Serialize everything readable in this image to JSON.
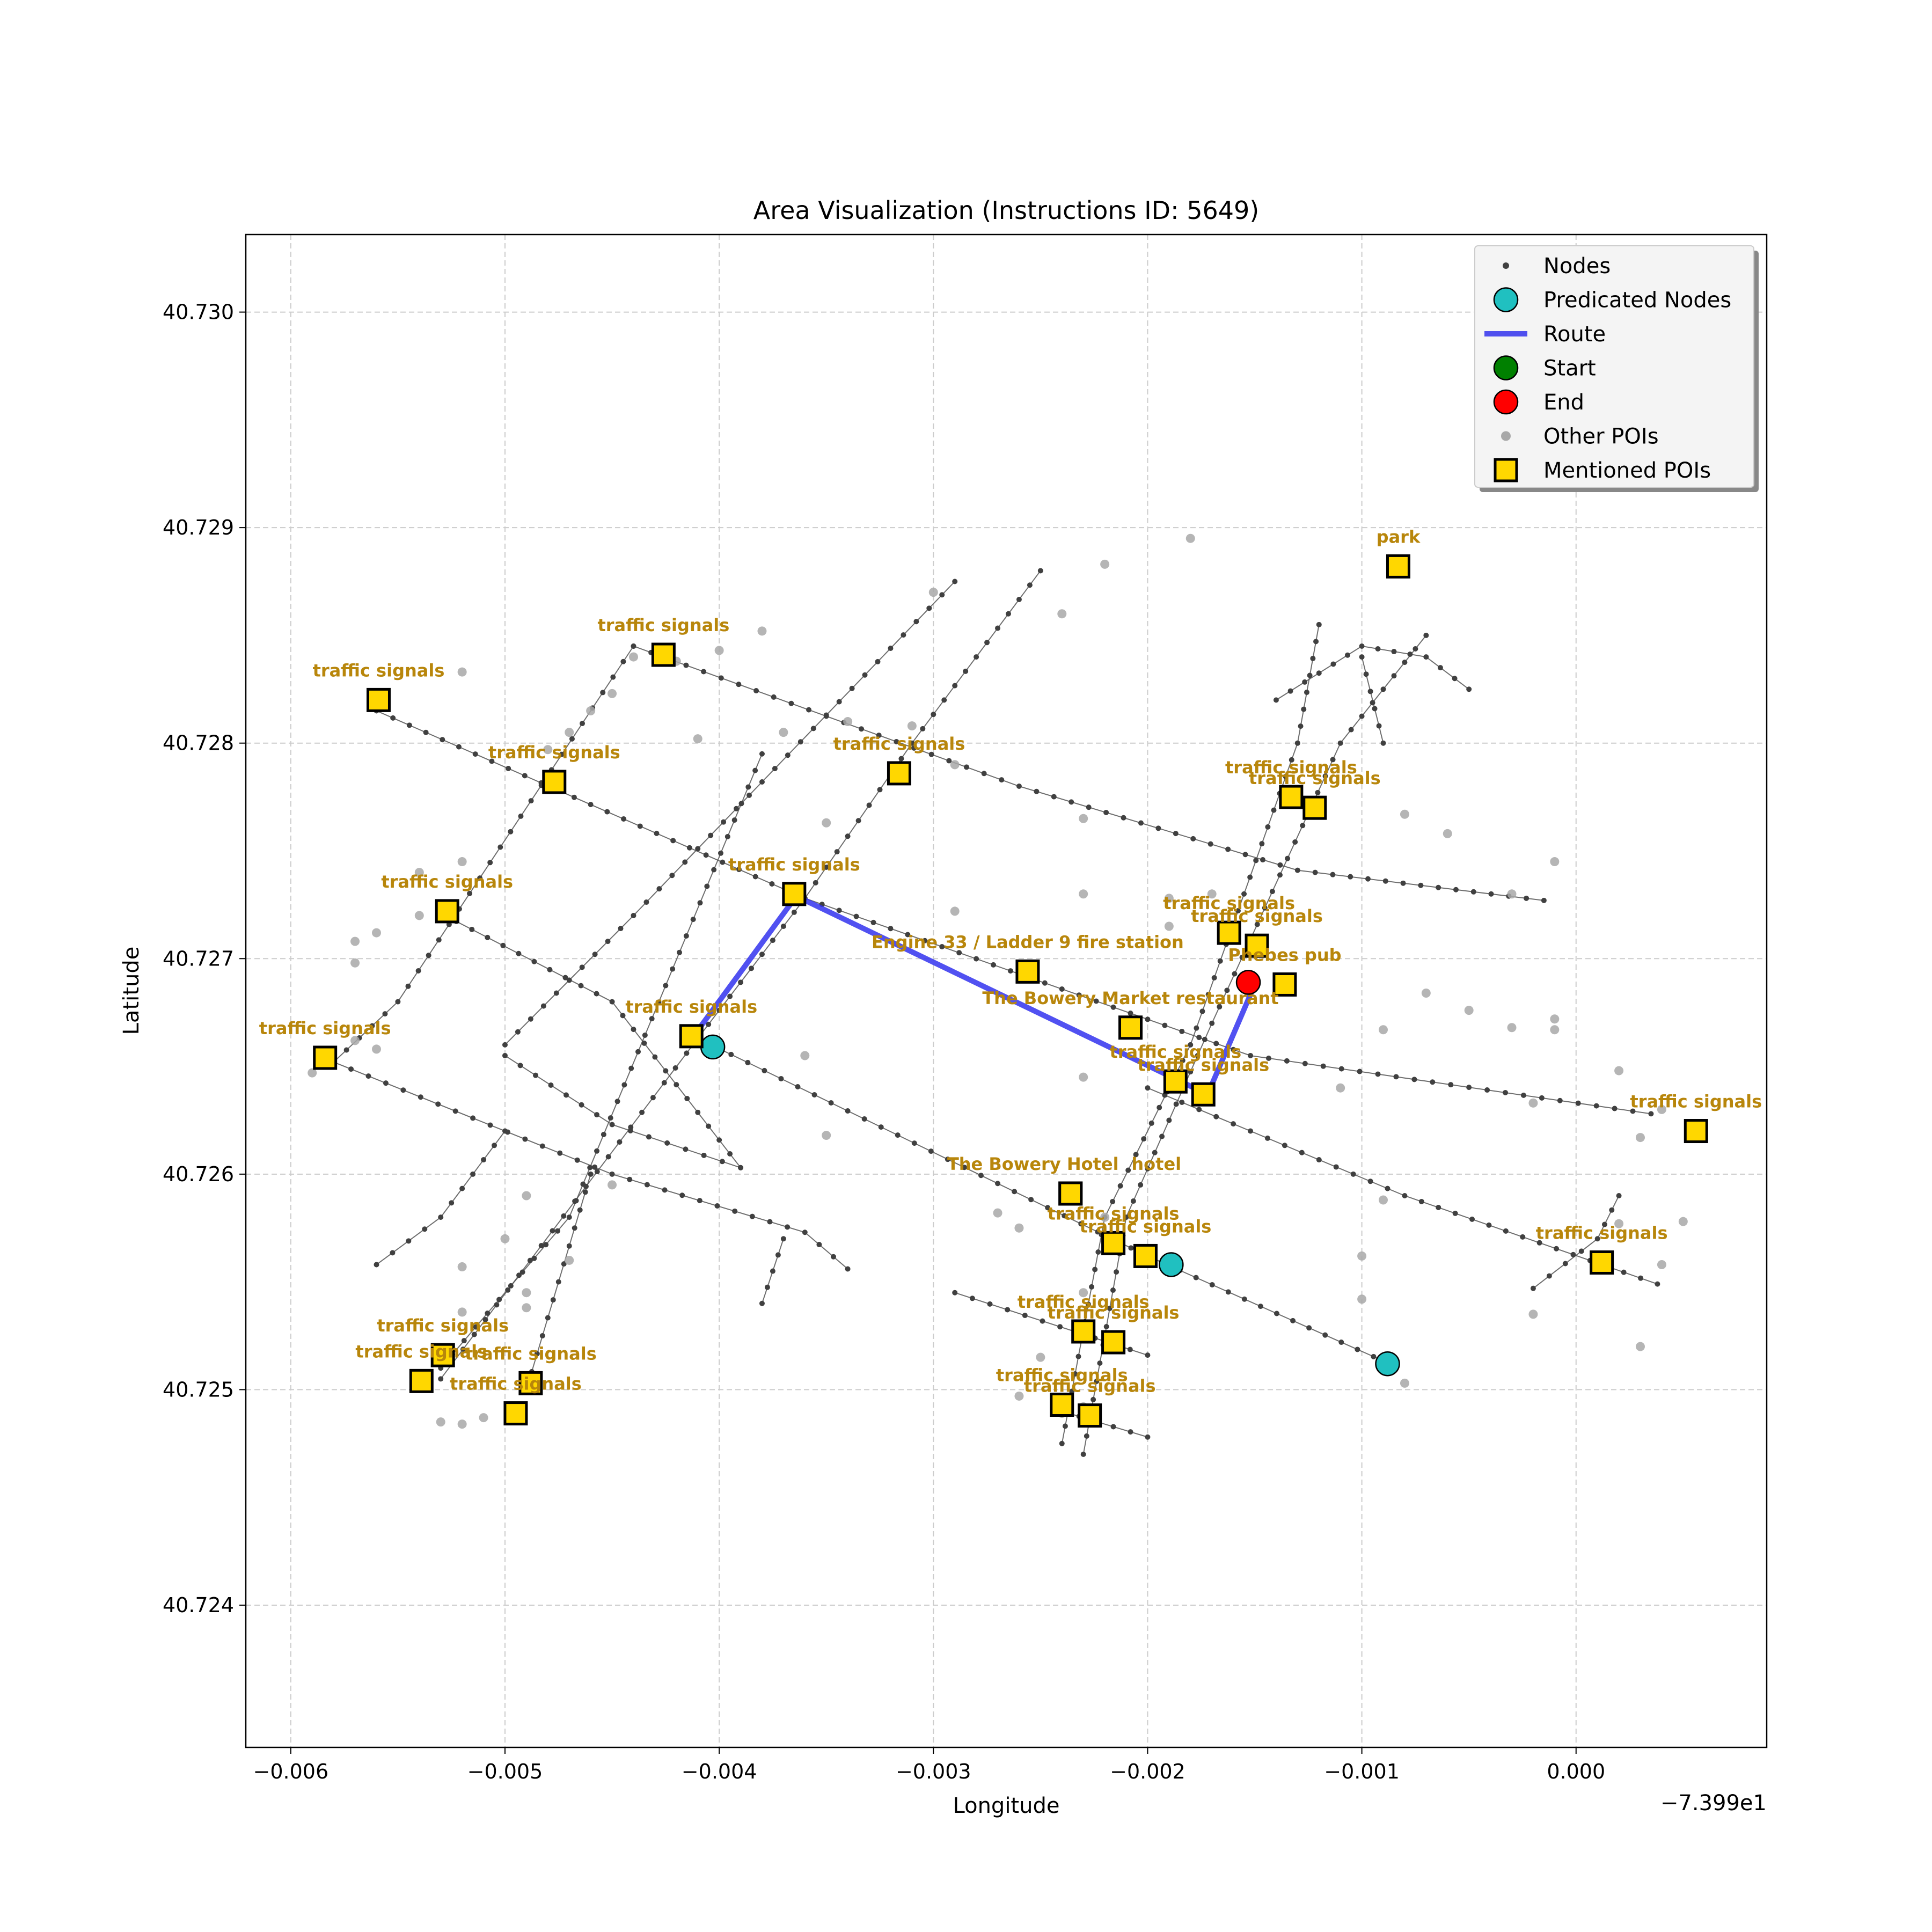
{
  "chart_data": {
    "type": "scatter",
    "title": "Area Visualization (Instructions ID: 5649)",
    "xlabel": "Longitude",
    "ylabel": "Latitude",
    "x_offset_label": "−7.399e1",
    "xlim": [
      -0.00621,
      0.00089
    ],
    "ylim": [
      40.72334,
      40.73036
    ],
    "xticks": [
      -0.006,
      -0.005,
      -0.004,
      -0.003,
      -0.002,
      -0.001,
      0.0
    ],
    "xtick_labels": [
      "−0.006",
      "−0.005",
      "−0.004",
      "−0.003",
      "−0.002",
      "−0.001",
      "0.000"
    ],
    "yticks": [
      40.724,
      40.725,
      40.726,
      40.727,
      40.728,
      40.729,
      40.73
    ],
    "ytick_labels": [
      "40.724",
      "40.725",
      "40.726",
      "40.727",
      "40.728",
      "40.729",
      "40.730"
    ],
    "grid": true,
    "legend_position": "top-right",
    "colors": {
      "node": "#404040",
      "edge": "#555555",
      "route": "#3333ee",
      "predicted": "#20c0c0",
      "start": "#008000",
      "end": "#ff0000",
      "other_poi": "#a8a8a8",
      "mentioned_poi": "#ffd700",
      "poi_label": "#b8860b"
    },
    "legend": [
      {
        "key": "nodes",
        "label": "Nodes"
      },
      {
        "key": "predicted",
        "label": "Predicated Nodes"
      },
      {
        "key": "route",
        "label": "Route"
      },
      {
        "key": "start",
        "label": "Start"
      },
      {
        "key": "end",
        "label": "End"
      },
      {
        "key": "other_poi",
        "label": "Other POIs"
      },
      {
        "key": "mentioned_poi",
        "label": "Mentioned POIs"
      }
    ],
    "streets": [
      [
        [
          -0.0056,
          40.72815
        ],
        [
          -0.0036,
          40.72728
        ],
        [
          -0.00152,
          40.72655
        ],
        [
          0.00035,
          40.72628
        ]
      ],
      [
        [
          -0.0044,
          40.72845
        ],
        [
          -0.0026,
          40.7278
        ],
        [
          -0.0013,
          40.72741
        ],
        [
          -0.00015,
          40.72727
        ]
      ],
      [
        [
          -0.0058,
          40.72652
        ],
        [
          -0.0045,
          40.726
        ],
        [
          -0.0036,
          40.72573
        ],
        [
          -0.0034,
          40.72556
        ]
      ],
      [
        [
          -0.0053,
          40.72721
        ],
        [
          -0.0045,
          40.7268
        ],
        [
          -0.0039,
          40.72603
        ]
      ],
      [
        [
          -0.005,
          40.72655
        ],
        [
          -0.0045,
          40.72623
        ],
        [
          -0.0039,
          40.72603
        ]
      ],
      [
        [
          -0.0041,
          40.72663
        ],
        [
          -0.002,
          40.72562
        ],
        [
          -0.00087,
          40.72512
        ]
      ],
      [
        [
          -0.002,
          40.7264
        ],
        [
          -0.0008,
          40.7259
        ],
        [
          0.00038,
          40.72549
        ]
      ],
      [
        [
          -0.0029,
          40.72545
        ],
        [
          -0.002,
          40.72516
        ]
      ],
      [
        [
          -0.0024,
          40.7249
        ],
        [
          -0.002,
          40.72478
        ]
      ],
      [
        [
          -0.0058,
          40.72652
        ],
        [
          -0.0055,
          40.7268
        ],
        [
          -0.0044,
          40.72845
        ]
      ],
      [
        [
          -0.0056,
          40.72558
        ],
        [
          -0.0053,
          40.7258
        ],
        [
          -0.005,
          40.7262
        ]
      ],
      [
        [
          -0.0053,
          40.7251
        ],
        [
          -0.0047,
          40.7258
        ],
        [
          -0.0038,
          40.72795
        ]
      ],
      [
        [
          -0.005,
          40.7266
        ],
        [
          -0.0044,
          40.7272
        ],
        [
          -0.0029,
          40.72875
        ]
      ],
      [
        [
          -0.0053,
          40.72505
        ],
        [
          -0.0041,
          40.72663
        ],
        [
          -0.0036,
          40.72728
        ],
        [
          -0.0031,
          40.728
        ],
        [
          -0.0025,
          40.7288
        ]
      ],
      [
        [
          -0.0049,
          40.725
        ],
        [
          -0.0046,
          40.726
        ]
      ],
      [
        [
          -0.0038,
          40.7254
        ],
        [
          -0.0037,
          40.7257
        ]
      ],
      [
        [
          -0.0024,
          40.72475
        ],
        [
          -0.0022,
          40.7258
        ],
        [
          -0.0018,
          40.7266
        ],
        [
          -0.0013,
          40.728
        ],
        [
          -0.0012,
          40.72855
        ]
      ],
      [
        [
          -0.0023,
          40.7247
        ],
        [
          -0.0021,
          40.7258
        ],
        [
          -0.0017,
          40.7267
        ],
        [
          -0.0011,
          40.728
        ],
        [
          -0.0007,
          40.7285
        ]
      ],
      [
        [
          -0.0014,
          40.7282
        ],
        [
          -0.001,
          40.72845
        ],
        [
          -0.0007,
          40.7284
        ],
        [
          -0.0005,
          40.72825
        ]
      ],
      [
        [
          -0.001,
          40.7284
        ],
        [
          -0.0009,
          40.728
        ]
      ],
      [
        [
          -0.0002,
          40.72547
        ],
        [
          0.0001,
          40.7257
        ],
        [
          0.0002,
          40.7259
        ]
      ]
    ],
    "route": [
      [
        -0.00412,
        40.72664
      ],
      [
        -0.00364,
        40.72729
      ],
      [
        -0.00172,
        40.72637
      ],
      [
        -0.0015,
        40.72688
      ]
    ],
    "start": [],
    "end": [
      -0.00153,
      40.72689
    ],
    "predicted_nodes": [
      [
        -0.00403,
        40.72659
      ],
      [
        -0.00189,
        40.72558
      ],
      [
        -0.00088,
        40.72512
      ]
    ],
    "other_pois": [
      [
        -0.0052,
        40.72833
      ],
      [
        -0.0042,
        40.72838
      ],
      [
        -0.0038,
        40.72852
      ],
      [
        -0.004,
        40.72843
      ],
      [
        -0.0044,
        40.7284
      ],
      [
        -0.0045,
        40.72823
      ],
      [
        -0.0046,
        40.72815
      ],
      [
        -0.0047,
        40.72805
      ],
      [
        -0.0048,
        40.72797
      ],
      [
        -0.0048,
        40.7278
      ],
      [
        -0.0052,
        40.72745
      ],
      [
        -0.0054,
        40.7274
      ],
      [
        -0.0054,
        40.7272
      ],
      [
        -0.0056,
        40.72712
      ],
      [
        -0.0057,
        40.72708
      ],
      [
        -0.0057,
        40.72698
      ],
      [
        -0.0059,
        40.72647
      ],
      [
        -0.0057,
        40.72662
      ],
      [
        -0.0056,
        40.72658
      ],
      [
        -0.0045,
        40.72595
      ],
      [
        -0.0049,
        40.7259
      ],
      [
        -0.005,
        40.7257
      ],
      [
        -0.0052,
        40.72557
      ],
      [
        -0.0047,
        40.7256
      ],
      [
        -0.0049,
        40.72545
      ],
      [
        -0.0049,
        40.72538
      ],
      [
        -0.0052,
        40.72536
      ],
      [
        -0.0053,
        40.72485
      ],
      [
        -0.0052,
        40.72484
      ],
      [
        -0.0051,
        40.72487
      ],
      [
        -0.0041,
        40.72802
      ],
      [
        -0.0037,
        40.72805
      ],
      [
        -0.0034,
        40.7281
      ],
      [
        -0.0031,
        40.72808
      ],
      [
        -0.003,
        40.7287
      ],
      [
        -0.0024,
        40.7286
      ],
      [
        -0.0022,
        40.72883
      ],
      [
        -0.0018,
        40.72895
      ],
      [
        -0.0035,
        40.72763
      ],
      [
        -0.0029,
        40.7279
      ],
      [
        -0.0029,
        40.72722
      ],
      [
        -0.0023,
        40.72765
      ],
      [
        -0.0023,
        40.7273
      ],
      [
        -0.0019,
        40.72715
      ],
      [
        -0.0019,
        40.72728
      ],
      [
        -0.0017,
        40.7273
      ],
      [
        -0.0008,
        40.72767
      ],
      [
        -0.0006,
        40.72758
      ],
      [
        -0.0001,
        40.72745
      ],
      [
        -0.0003,
        40.7273
      ],
      [
        -0.0036,
        40.72655
      ],
      [
        -0.0035,
        40.72618
      ],
      [
        -0.0023,
        40.72645
      ],
      [
        -0.0011,
        40.7264
      ],
      [
        -0.0007,
        40.72684
      ],
      [
        -0.0005,
        40.72676
      ],
      [
        -0.0009,
        40.72667
      ],
      [
        -0.0003,
        40.72668
      ],
      [
        -0.0001,
        40.72672
      ],
      [
        -0.0002,
        40.72633
      ],
      [
        -0.0001,
        40.72667
      ],
      [
        0.0003,
        40.72617
      ],
      [
        0.0004,
        40.7263
      ],
      [
        0.0002,
        40.72648
      ],
      [
        -0.0027,
        40.72582
      ],
      [
        -0.0026,
        40.72575
      ],
      [
        -0.0023,
        40.72545
      ],
      [
        -0.0022,
        40.7258
      ],
      [
        -0.0019,
        40.72555
      ],
      [
        -0.001,
        40.72562
      ],
      [
        -0.0009,
        40.72588
      ],
      [
        -0.001,
        40.72542
      ],
      [
        -0.0002,
        40.72535
      ],
      [
        0.0003,
        40.7252
      ],
      [
        0.0004,
        40.72558
      ],
      [
        0.0005,
        40.72578
      ],
      [
        -0.0008,
        40.72503
      ],
      [
        -0.0025,
        40.72515
      ],
      [
        -0.0026,
        40.72497
      ],
      [
        -0.0024,
        40.72489
      ],
      [
        -0.0023,
        40.72492
      ],
      [
        0.0002,
        40.72577
      ]
    ],
    "mentioned_pois": [
      {
        "label": "park",
        "x": -0.00083,
        "y": 40.72882
      },
      {
        "label": "traffic signals",
        "x": -0.00426,
        "y": 40.72841
      },
      {
        "label": "traffic signals",
        "x": -0.00559,
        "y": 40.7282
      },
      {
        "label": "traffic signals",
        "x": -0.00477,
        "y": 40.72782
      },
      {
        "label": "traffic signals",
        "x": -0.00316,
        "y": 40.72786
      },
      {
        "label": "traffic signals",
        "x": -0.00133,
        "y": 40.72775
      },
      {
        "label": "traffic signals",
        "x": -0.00122,
        "y": 40.7277
      },
      {
        "label": "traffic signals",
        "x": -0.00365,
        "y": 40.7273
      },
      {
        "label": "traffic signals",
        "x": -0.00527,
        "y": 40.72722
      },
      {
        "label": "traffic signals",
        "x": -0.00162,
        "y": 40.72712
      },
      {
        "label": "traffic signals",
        "x": -0.00149,
        "y": 40.72706
      },
      {
        "label": "Engine 33 / Ladder 9 fire station",
        "x": -0.00256,
        "y": 40.72694
      },
      {
        "label": "Phebes pub",
        "x": -0.00136,
        "y": 40.72688
      },
      {
        "label": "The Bowery Market restaurant",
        "x": -0.00208,
        "y": 40.72668
      },
      {
        "label": "traffic signals",
        "x": -0.00413,
        "y": 40.72664
      },
      {
        "label": "traffic signals",
        "x": -0.00584,
        "y": 40.72654
      },
      {
        "label": "traffic signals",
        "x": -0.00187,
        "y": 40.72643
      },
      {
        "label": "traffic signals",
        "x": -0.00174,
        "y": 40.72637
      },
      {
        "label": "traffic signals",
        "x": 0.00056,
        "y": 40.7262
      },
      {
        "label": "The Bowery Hotel",
        "x": -0.00236,
        "y": 40.72591
      },
      {
        "label": "hotel",
        "x": -0.00236,
        "y": 40.72591
      },
      {
        "label": "traffic signals",
        "x": -0.00216,
        "y": 40.72568
      },
      {
        "label": "traffic signals",
        "x": -0.00201,
        "y": 40.72562
      },
      {
        "label": "traffic signals",
        "x": 0.00012,
        "y": 40.72559
      },
      {
        "label": "traffic signals",
        "x": -0.0023,
        "y": 40.72527
      },
      {
        "label": "traffic signals",
        "x": -0.00216,
        "y": 40.72522
      },
      {
        "label": "traffic signals",
        "x": -0.00529,
        "y": 40.72516
      },
      {
        "label": "traffic signals",
        "x": -0.00539,
        "y": 40.72504
      },
      {
        "label": "traffic signals",
        "x": -0.00488,
        "y": 40.72503
      },
      {
        "label": "traffic signals",
        "x": -0.00495,
        "y": 40.72489
      },
      {
        "label": "traffic signals",
        "x": -0.0024,
        "y": 40.72493
      },
      {
        "label": "traffic signals",
        "x": -0.00227,
        "y": 40.72488
      }
    ]
  }
}
